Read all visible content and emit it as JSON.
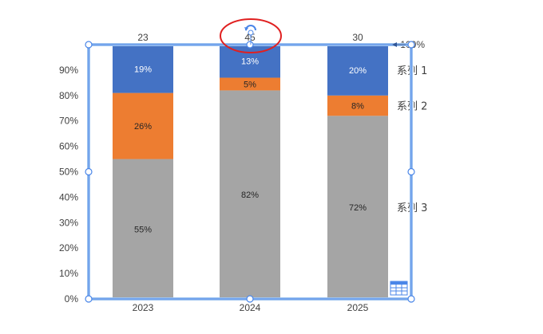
{
  "chart_data": {
    "type": "bar",
    "stacked": true,
    "categories": [
      "2023",
      "2024",
      "2025"
    ],
    "top_labels": [
      "23",
      "45",
      "30"
    ],
    "series": [
      {
        "name": "系列 3",
        "values": [
          55,
          82,
          72
        ],
        "labels": [
          "55%",
          "82%",
          "72%"
        ],
        "color": "#A5A5A5",
        "label_color": "#262626"
      },
      {
        "name": "系列 2",
        "values": [
          26,
          5,
          8
        ],
        "labels": [
          "26%",
          "5%",
          "8%"
        ],
        "color": "#ED7D31",
        "label_color": "#262626"
      },
      {
        "name": "系列 1",
        "values": [
          19,
          13,
          20
        ],
        "labels": [
          "19%",
          "13%",
          "20%"
        ],
        "color": "#4472C4",
        "label_color": "#ffffff"
      }
    ],
    "y_ticks": [
      "0%",
      "10%",
      "20%",
      "30%",
      "40%",
      "50%",
      "60%",
      "70%",
      "80%",
      "90%",
      "100%"
    ],
    "ylim": [
      0,
      100
    ],
    "grid": false,
    "legend": "right-inline"
  },
  "selection": {
    "highlight_color": "#E02020",
    "handle_color": "#4A86E8"
  },
  "icons": {
    "rotate_handle": "rotate-handle-icon",
    "data_table": "data-table-icon"
  }
}
